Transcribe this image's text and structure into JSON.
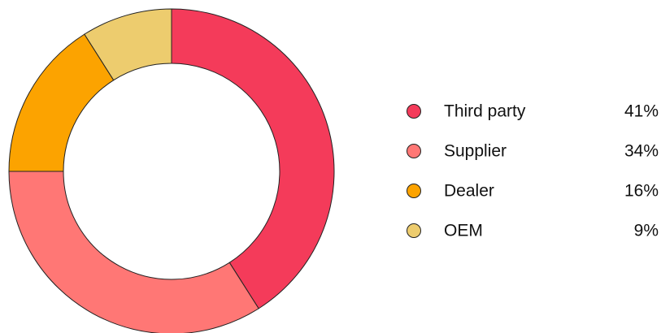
{
  "chart_data": {
    "type": "pie",
    "variant": "donut",
    "title": "",
    "legend_position": "right",
    "slices": [
      {
        "label": "Third party",
        "value": 41,
        "value_label": "41%",
        "color": "#F43B5A"
      },
      {
        "label": "Supplier",
        "value": 34,
        "value_label": "34%",
        "color": "#FF7775"
      },
      {
        "label": "Dealer",
        "value": 16,
        "value_label": "16%",
        "color": "#FCA300"
      },
      {
        "label": "OEM",
        "value": 9,
        "value_label": "9%",
        "color": "#EDCC6E"
      }
    ]
  }
}
